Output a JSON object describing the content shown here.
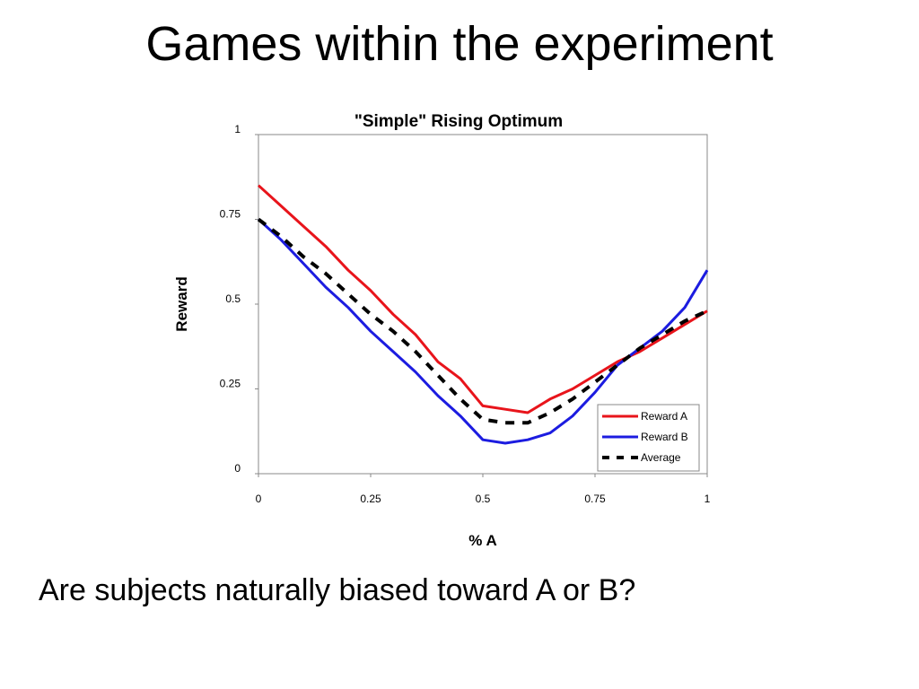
{
  "slide": {
    "title": "Games within the experiment",
    "question": "Are subjects naturally biased toward A or B?"
  },
  "chart_data": {
    "type": "line",
    "title": "\"Simple\" Rising Optimum",
    "xlabel": "% A",
    "ylabel": "Reward",
    "xlim": [
      0,
      1
    ],
    "ylim": [
      0,
      1
    ],
    "xticks": [
      0,
      0.25,
      0.5,
      0.75,
      1
    ],
    "xtick_labels": [
      "0",
      "0.25",
      "0.5",
      "0.75",
      "1"
    ],
    "yticks": [
      0,
      0.25,
      0.5,
      0.75,
      1
    ],
    "ytick_labels": [
      "0",
      "0.25",
      "0.5",
      "0.75",
      "1"
    ],
    "grid": false,
    "legend_position": "bottom-right",
    "x": [
      0,
      0.05,
      0.1,
      0.15,
      0.2,
      0.25,
      0.3,
      0.35,
      0.4,
      0.45,
      0.5,
      0.55,
      0.6,
      0.65,
      0.7,
      0.75,
      0.8,
      0.85,
      0.9,
      0.95,
      1
    ],
    "series": [
      {
        "name": "Reward A",
        "color": "#e8141b",
        "style": "solid",
        "values": [
          0.85,
          0.79,
          0.73,
          0.67,
          0.6,
          0.54,
          0.47,
          0.41,
          0.33,
          0.28,
          0.2,
          0.19,
          0.18,
          0.22,
          0.25,
          0.29,
          0.33,
          0.36,
          0.4,
          0.44,
          0.48
        ]
      },
      {
        "name": "Reward B",
        "color": "#1c1ce0",
        "style": "solid",
        "values": [
          0.75,
          0.69,
          0.62,
          0.55,
          0.49,
          0.42,
          0.36,
          0.3,
          0.23,
          0.17,
          0.1,
          0.09,
          0.1,
          0.12,
          0.17,
          0.24,
          0.32,
          0.37,
          0.42,
          0.49,
          0.6
        ]
      },
      {
        "name": "Average",
        "color": "#000000",
        "style": "dashed",
        "values": [
          0.75,
          0.7,
          0.64,
          0.59,
          0.53,
          0.47,
          0.42,
          0.36,
          0.29,
          0.22,
          0.16,
          0.15,
          0.15,
          0.18,
          0.22,
          0.27,
          0.32,
          0.37,
          0.41,
          0.45,
          0.48
        ]
      }
    ]
  }
}
